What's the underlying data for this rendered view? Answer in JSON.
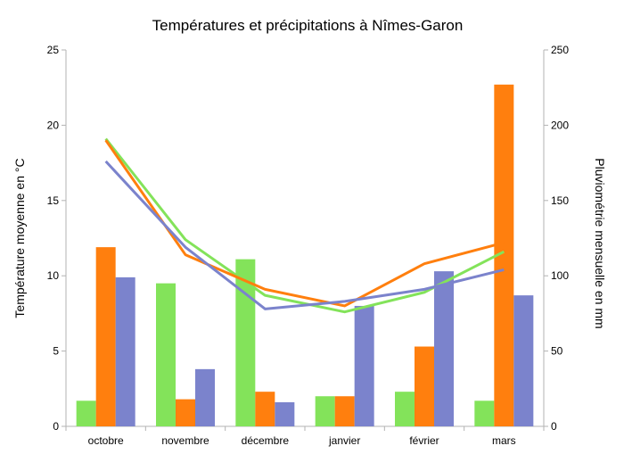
{
  "chart_data": {
    "type": "bar",
    "title": "Températures et précipitations à Nîmes-Garon",
    "ylabel": "Température moyenne en °C",
    "y2label": "Pluviométrie mensuelle en mm",
    "categories": [
      "octobre",
      "novembre",
      "décembre",
      "janvier",
      "février",
      "mars"
    ],
    "ylim": [
      0,
      25
    ],
    "y2lim": [
      0,
      250
    ],
    "yticks": [
      "0",
      "5",
      "10",
      "15",
      "20",
      "25"
    ],
    "y2ticks": [
      "0",
      "50",
      "100",
      "150",
      "200",
      "250"
    ],
    "grid": false,
    "legend": "none",
    "bar_series": [
      {
        "color": "#83e35a",
        "axis": "y2",
        "values": [
          17,
          95,
          111,
          20,
          23,
          17
        ]
      },
      {
        "color": "#ff7f0e",
        "axis": "y2",
        "values": [
          119,
          18,
          23,
          20,
          53,
          227
        ]
      },
      {
        "color": "#7b83cc",
        "axis": "y2",
        "values": [
          99,
          38,
          16,
          80,
          103,
          87
        ]
      }
    ],
    "line_series": [
      {
        "color": "#83e35a",
        "axis": "y",
        "values": [
          19.1,
          12.4,
          8.7,
          7.6,
          8.9,
          11.6
        ]
      },
      {
        "color": "#ff7f0e",
        "axis": "y",
        "values": [
          19.0,
          11.4,
          9.1,
          8.0,
          10.8,
          12.2
        ]
      },
      {
        "color": "#7b83cc",
        "axis": "y",
        "values": [
          17.6,
          11.9,
          7.8,
          8.3,
          9.1,
          10.4
        ]
      }
    ]
  }
}
